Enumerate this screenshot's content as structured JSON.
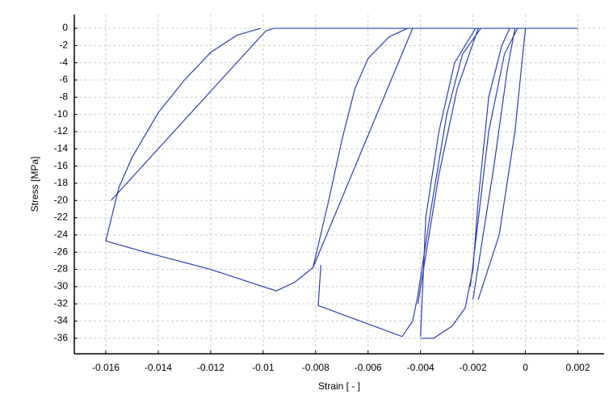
{
  "chart_data": {
    "type": "line",
    "xlabel": "Strain [ - ]",
    "ylabel": "Stress [MPa]",
    "color": "#2b3fb0",
    "grid": true,
    "xlim": [
      -0.0172,
      0.003
    ],
    "ylim": [
      -37.8,
      1.6
    ],
    "xticks": [
      -0.016,
      -0.014,
      -0.012,
      -0.01,
      -0.008,
      -0.006,
      -0.004,
      -0.002,
      0,
      0.002
    ],
    "yticks": [
      0,
      -2,
      -4,
      -6,
      -8,
      -10,
      -12,
      -14,
      -16,
      -18,
      -20,
      -22,
      -24,
      -26,
      -28,
      -30,
      -32,
      -34,
      -36
    ],
    "x": [
      -0.0158,
      -0.0099,
      -0.0096,
      0.002,
      null,
      -0.0101,
      -0.011,
      -0.012,
      -0.013,
      -0.014,
      -0.015,
      -0.0155,
      -0.016,
      -0.0145,
      -0.012,
      -0.0095,
      -0.0088,
      -0.0081,
      -0.0075,
      -0.007,
      -0.0065,
      -0.006,
      -0.0052,
      -0.0045,
      null,
      -0.0081,
      -0.0043,
      null,
      -0.0078,
      -0.0079,
      -0.0047,
      -0.0043,
      -0.0041,
      -0.0036,
      -0.003,
      -0.0024,
      -0.0017,
      null,
      -0.0041,
      -0.0033,
      -0.0026,
      -0.0018,
      null,
      -0.004,
      -0.0035,
      -0.0028,
      -0.0023,
      -0.002,
      -0.0018,
      -0.0014,
      -0.0009,
      -0.0006,
      null,
      -0.002,
      -0.0012,
      -0.0007,
      -0.0004,
      null,
      -0.0021,
      -0.0014,
      -0.0008,
      -0.0003,
      null,
      -0.0018,
      -0.001,
      -0.0004,
      -0.0001,
      0,
      null,
      -0.004,
      -0.0038,
      -0.0033,
      -0.0027,
      -0.0019
    ],
    "values": [
      -20,
      -0.3,
      0,
      0,
      null,
      0,
      -0.8,
      -2.8,
      -6,
      -9.8,
      -15,
      -18.5,
      -24.7,
      -26,
      -28,
      -30.5,
      -29.5,
      -27.8,
      -20,
      -13,
      -7,
      -3.5,
      -1,
      0,
      null,
      -27.8,
      0,
      null,
      -27.5,
      -32.2,
      -35.8,
      -34,
      -31,
      -21,
      -10,
      -3,
      0,
      null,
      -32,
      -17,
      -7,
      0,
      null,
      -36,
      -36,
      -34.6,
      -32.5,
      -28,
      -20,
      -8,
      -2,
      0,
      null,
      -31.5,
      -16,
      -5,
      0,
      null,
      -30,
      -12,
      -3,
      0,
      null,
      -31.5,
      -24,
      -12,
      -3,
      0,
      null,
      -35.8,
      -22,
      -12,
      -4,
      0
    ]
  }
}
